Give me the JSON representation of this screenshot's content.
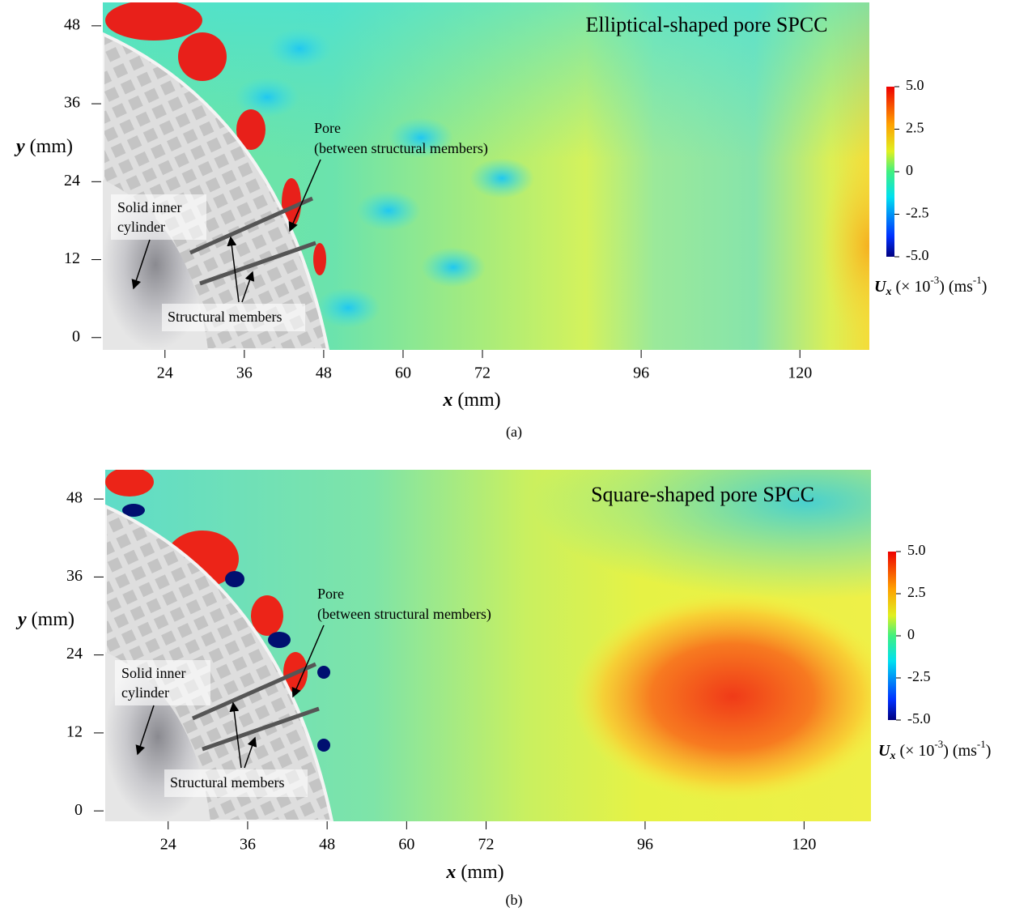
{
  "chart_data": [
    {
      "type": "heatmap",
      "title": "Elliptical-shaped pore SPCC",
      "x_label": [
        "x",
        "(mm)"
      ],
      "y_label": [
        "y",
        "(mm)"
      ],
      "xlim": [
        14.6,
        130.5
      ],
      "ylim": [
        -1.9,
        51.6
      ],
      "xticks": [
        24,
        36,
        48,
        60,
        72,
        96,
        120
      ],
      "yticks": [
        0,
        12,
        24,
        36,
        48
      ],
      "colorbar_lim": [
        -5,
        5
      ],
      "colorbar_ticks": [
        {
          "value": -5,
          "label": "-5.0"
        },
        -2.5,
        0,
        2.5,
        {
          "value": 5,
          "label": "5.0"
        }
      ],
      "colorbar_label": [
        "U",
        "x",
        " (× 10",
        "-3",
        ") (ms",
        "-1",
        ")"
      ],
      "annotations": {
        "pore": [
          "Pore",
          "(between structural members)"
        ],
        "cylinder": [
          "Solid inner",
          "cylinder"
        ],
        "members": "Structural members"
      },
      "caption": "(a)"
    },
    {
      "type": "heatmap",
      "title": "Square-shaped pore SPCC",
      "x_label": [
        "x",
        "(mm)"
      ],
      "y_label": [
        "y",
        "(mm)"
      ],
      "xlim": [
        14.5,
        130.1
      ],
      "ylim": [
        -1.6,
        52.5
      ],
      "xticks": [
        24,
        36,
        48,
        60,
        72,
        96,
        120
      ],
      "yticks": [
        0,
        12,
        24,
        36,
        48
      ],
      "colorbar_lim": [
        -5,
        5
      ],
      "colorbar_ticks": [
        {
          "value": -5,
          "label": "-5.0"
        },
        -2.5,
        0,
        2.5,
        {
          "value": 5,
          "label": "5.0"
        }
      ],
      "colorbar_label": [
        "U",
        "x",
        " (× 10",
        "-3",
        ") (ms",
        "-1",
        ")"
      ],
      "annotations": {
        "pore": [
          "Pore",
          "(between structural members)"
        ],
        "cylinder": [
          "Solid inner",
          "cylinder"
        ],
        "members": "Structural members"
      },
      "caption": "(b)"
    }
  ]
}
